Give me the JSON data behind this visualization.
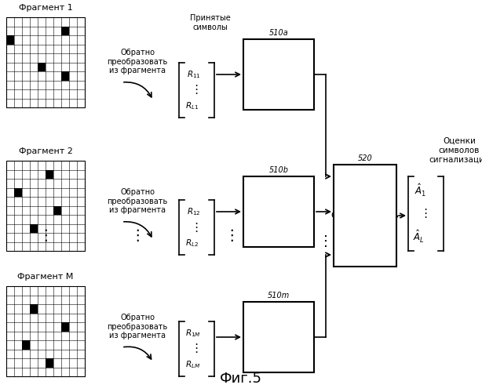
{
  "bg_color": "#ffffff",
  "title": "Фиг.5",
  "frag_names": [
    "Фрагмент 1",
    "Фрагмент 2",
    "Фрагмент M"
  ],
  "device_ids": [
    "510a",
    "510b",
    "510m"
  ],
  "combiner_id": "520",
  "output_label": "Оценки\nсимволов\nсигнализации"
}
